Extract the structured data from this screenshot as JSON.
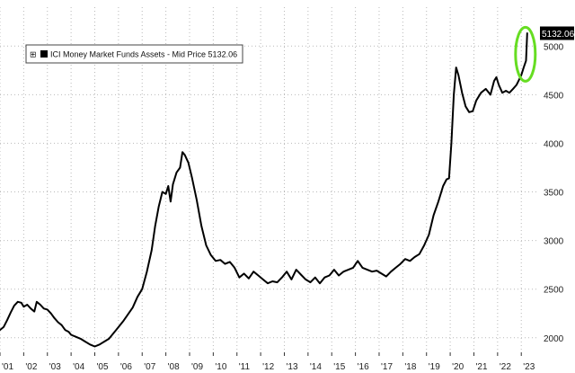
{
  "chart_data": {
    "type": "line",
    "legend": {
      "toggle_glyph": "⊞",
      "label": "ICI Money Market Funds Assets - Mid Price 5132.06",
      "placement": "top-left"
    },
    "last_value_label": "5132.06",
    "highlight_color": "#66dd22",
    "line_color": "#000000",
    "grid": true,
    "y_axis": {
      "side": "right",
      "ylim": [
        1850,
        5400
      ],
      "ticks": [
        {
          "value": 2000,
          "label": "2000"
        },
        {
          "value": 2500,
          "label": "2500"
        },
        {
          "value": 3000,
          "label": "3000"
        },
        {
          "value": 3500,
          "label": "3500"
        },
        {
          "value": 4000,
          "label": "4000"
        },
        {
          "value": 4500,
          "label": "4500"
        },
        {
          "value": 5000,
          "label": "5000"
        }
      ]
    },
    "x_axis": {
      "xlim": [
        2001.0,
        2023.75
      ],
      "ticks": [
        {
          "value": 2001.0,
          "label": "'01"
        },
        {
          "value": 2002.0,
          "label": "'02"
        },
        {
          "value": 2003.0,
          "label": "'03"
        },
        {
          "value": 2004.0,
          "label": "'04"
        },
        {
          "value": 2005.0,
          "label": "'05"
        },
        {
          "value": 2006.0,
          "label": "'06"
        },
        {
          "value": 2007.0,
          "label": "'07"
        },
        {
          "value": 2008.0,
          "label": "'08"
        },
        {
          "value": 2009.0,
          "label": "'09"
        },
        {
          "value": 2010.0,
          "label": "'10"
        },
        {
          "value": 2011.0,
          "label": "'11"
        },
        {
          "value": 2012.0,
          "label": "'12"
        },
        {
          "value": 2013.0,
          "label": "'13"
        },
        {
          "value": 2014.0,
          "label": "'14"
        },
        {
          "value": 2015.0,
          "label": "'15"
        },
        {
          "value": 2016.0,
          "label": "'16"
        },
        {
          "value": 2017.0,
          "label": "'17"
        },
        {
          "value": 2018.0,
          "label": "'18"
        },
        {
          "value": 2019.0,
          "label": "'19"
        },
        {
          "value": 2020.0,
          "label": "'20"
        },
        {
          "value": 2021.0,
          "label": "'21"
        },
        {
          "value": 2022.0,
          "label": "'22"
        },
        {
          "value": 2023.0,
          "label": "'23"
        }
      ]
    },
    "series": [
      {
        "points": [
          [
            2001.0,
            2080
          ],
          [
            2001.15,
            2110
          ],
          [
            2001.3,
            2180
          ],
          [
            2001.45,
            2260
          ],
          [
            2001.6,
            2330
          ],
          [
            2001.75,
            2370
          ],
          [
            2001.9,
            2360
          ],
          [
            2002.0,
            2320
          ],
          [
            2002.15,
            2340
          ],
          [
            2002.3,
            2300
          ],
          [
            2002.45,
            2270
          ],
          [
            2002.55,
            2370
          ],
          [
            2002.7,
            2340
          ],
          [
            2002.85,
            2300
          ],
          [
            2003.0,
            2290
          ],
          [
            2003.15,
            2250
          ],
          [
            2003.3,
            2200
          ],
          [
            2003.45,
            2160
          ],
          [
            2003.6,
            2130
          ],
          [
            2003.75,
            2080
          ],
          [
            2003.9,
            2060
          ],
          [
            2004.0,
            2030
          ],
          [
            2004.2,
            2010
          ],
          [
            2004.4,
            1990
          ],
          [
            2004.6,
            1960
          ],
          [
            2004.8,
            1930
          ],
          [
            2005.0,
            1910
          ],
          [
            2005.2,
            1930
          ],
          [
            2005.4,
            1960
          ],
          [
            2005.6,
            1990
          ],
          [
            2005.8,
            2050
          ],
          [
            2006.0,
            2110
          ],
          [
            2006.2,
            2170
          ],
          [
            2006.4,
            2240
          ],
          [
            2006.6,
            2310
          ],
          [
            2006.8,
            2420
          ],
          [
            2007.0,
            2500
          ],
          [
            2007.2,
            2680
          ],
          [
            2007.4,
            2900
          ],
          [
            2007.55,
            3150
          ],
          [
            2007.7,
            3350
          ],
          [
            2007.85,
            3500
          ],
          [
            2008.0,
            3480
          ],
          [
            2008.1,
            3560
          ],
          [
            2008.2,
            3400
          ],
          [
            2008.3,
            3580
          ],
          [
            2008.45,
            3700
          ],
          [
            2008.6,
            3750
          ],
          [
            2008.7,
            3910
          ],
          [
            2008.8,
            3880
          ],
          [
            2008.95,
            3800
          ],
          [
            2009.1,
            3650
          ],
          [
            2009.3,
            3420
          ],
          [
            2009.5,
            3150
          ],
          [
            2009.7,
            2950
          ],
          [
            2009.9,
            2850
          ],
          [
            2010.1,
            2790
          ],
          [
            2010.3,
            2800
          ],
          [
            2010.5,
            2760
          ],
          [
            2010.7,
            2780
          ],
          [
            2010.9,
            2720
          ],
          [
            2011.1,
            2620
          ],
          [
            2011.3,
            2660
          ],
          [
            2011.5,
            2610
          ],
          [
            2011.7,
            2680
          ],
          [
            2011.9,
            2640
          ],
          [
            2012.1,
            2600
          ],
          [
            2012.3,
            2560
          ],
          [
            2012.5,
            2580
          ],
          [
            2012.7,
            2570
          ],
          [
            2012.9,
            2620
          ],
          [
            2013.1,
            2680
          ],
          [
            2013.3,
            2600
          ],
          [
            2013.5,
            2700
          ],
          [
            2013.7,
            2650
          ],
          [
            2013.9,
            2600
          ],
          [
            2014.1,
            2570
          ],
          [
            2014.3,
            2620
          ],
          [
            2014.5,
            2560
          ],
          [
            2014.7,
            2620
          ],
          [
            2014.9,
            2640
          ],
          [
            2015.1,
            2700
          ],
          [
            2015.3,
            2640
          ],
          [
            2015.5,
            2680
          ],
          [
            2015.7,
            2700
          ],
          [
            2015.9,
            2720
          ],
          [
            2016.1,
            2790
          ],
          [
            2016.3,
            2720
          ],
          [
            2016.5,
            2700
          ],
          [
            2016.7,
            2680
          ],
          [
            2016.9,
            2690
          ],
          [
            2017.1,
            2660
          ],
          [
            2017.3,
            2630
          ],
          [
            2017.5,
            2680
          ],
          [
            2017.7,
            2720
          ],
          [
            2017.9,
            2760
          ],
          [
            2018.1,
            2810
          ],
          [
            2018.3,
            2790
          ],
          [
            2018.5,
            2830
          ],
          [
            2018.7,
            2860
          ],
          [
            2018.9,
            2950
          ],
          [
            2019.1,
            3060
          ],
          [
            2019.3,
            3260
          ],
          [
            2019.5,
            3400
          ],
          [
            2019.7,
            3560
          ],
          [
            2019.85,
            3630
          ],
          [
            2019.95,
            3640
          ],
          [
            2020.05,
            4000
          ],
          [
            2020.15,
            4500
          ],
          [
            2020.25,
            4780
          ],
          [
            2020.35,
            4700
          ],
          [
            2020.5,
            4520
          ],
          [
            2020.65,
            4380
          ],
          [
            2020.8,
            4320
          ],
          [
            2020.95,
            4330
          ],
          [
            2021.1,
            4440
          ],
          [
            2021.3,
            4520
          ],
          [
            2021.5,
            4560
          ],
          [
            2021.7,
            4500
          ],
          [
            2021.85,
            4640
          ],
          [
            2021.95,
            4680
          ],
          [
            2022.05,
            4600
          ],
          [
            2022.2,
            4520
          ],
          [
            2022.35,
            4540
          ],
          [
            2022.5,
            4520
          ],
          [
            2022.65,
            4560
          ],
          [
            2022.8,
            4600
          ],
          [
            2022.9,
            4650
          ],
          [
            2023.0,
            4700
          ],
          [
            2023.1,
            4780
          ],
          [
            2023.2,
            4850
          ],
          [
            2023.25,
            5132.06
          ]
        ]
      }
    ]
  }
}
